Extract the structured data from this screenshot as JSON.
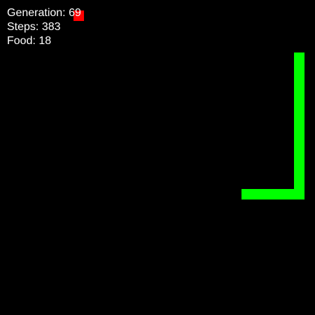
{
  "stats": {
    "generation_label": "Generation:",
    "generation_value": "69",
    "steps_label": "Steps:",
    "steps_value": "383",
    "food_label": "Food:",
    "food_value": "18"
  },
  "colors": {
    "background": "#000000",
    "snake": "#00ff00",
    "food": "#ff0000",
    "text": "#ffffff"
  },
  "grid": {
    "columns": 30,
    "rows": 30
  },
  "food": {
    "col": 7,
    "row": 1
  },
  "snake": {
    "segments": [
      {
        "col": 23,
        "row": 18
      },
      {
        "col": 24,
        "row": 18
      },
      {
        "col": 25,
        "row": 18
      },
      {
        "col": 26,
        "row": 18
      },
      {
        "col": 27,
        "row": 18
      },
      {
        "col": 28,
        "row": 18
      },
      {
        "col": 28,
        "row": 17
      },
      {
        "col": 28,
        "row": 16
      },
      {
        "col": 28,
        "row": 15
      },
      {
        "col": 28,
        "row": 14
      },
      {
        "col": 28,
        "row": 13
      },
      {
        "col": 28,
        "row": 12
      },
      {
        "col": 28,
        "row": 11
      },
      {
        "col": 28,
        "row": 10
      },
      {
        "col": 28,
        "row": 9
      },
      {
        "col": 28,
        "row": 8
      },
      {
        "col": 28,
        "row": 7
      },
      {
        "col": 28,
        "row": 6
      },
      {
        "col": 28,
        "row": 5
      }
    ]
  }
}
